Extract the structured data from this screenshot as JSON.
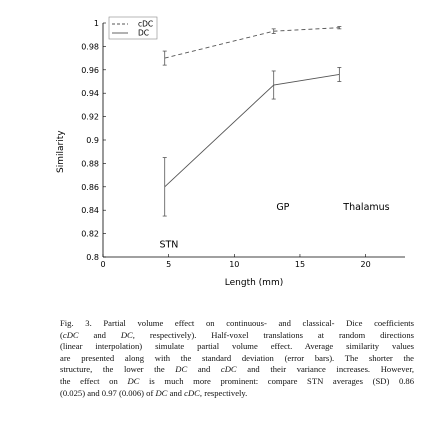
{
  "chart_data": {
    "type": "line",
    "xlabel": "Length (mm)",
    "ylabel": "Similarity",
    "xlim": [
      0,
      23
    ],
    "ylim": [
      0.8,
      1.0
    ],
    "x_ticks": [
      0,
      5,
      10,
      15,
      20
    ],
    "y_ticks": [
      0.8,
      0.82,
      0.84,
      0.86,
      0.88,
      0.9,
      0.92,
      0.94,
      0.96,
      0.98,
      1
    ],
    "y_tick_labels": [
      "0.8",
      "0.82",
      "0.84",
      "0.86",
      "0.88",
      "0.9",
      "0.92",
      "0.94",
      "0.96",
      "0.98",
      "1"
    ],
    "legend_position": "top-left",
    "series": [
      {
        "name": "cDC",
        "style": "dashed",
        "color": "#555555",
        "x": [
          4.7,
          13,
          18
        ],
        "y": [
          0.97,
          0.993,
          0.996
        ],
        "sd": [
          0.006,
          0.002,
          0.001
        ]
      },
      {
        "name": "DC",
        "style": "solid",
        "color": "#555555",
        "x": [
          4.7,
          13,
          18
        ],
        "y": [
          0.86,
          0.947,
          0.956
        ],
        "sd": [
          0.025,
          0.012,
          0.006
        ]
      }
    ],
    "annotations": [
      {
        "text": "STN",
        "x": 4.3,
        "y": 0.808
      },
      {
        "text": "GP",
        "x": 13.2,
        "y": 0.84
      },
      {
        "text": "Thalamus",
        "x": 18.3,
        "y": 0.84
      }
    ]
  },
  "caption": {
    "lines": [
      {
        "parts": [
          {
            "t": "Fig. 3. Partial volume effect on continuous- and classical- Dice coefficients"
          }
        ]
      },
      {
        "parts": [
          {
            "t": "("
          },
          {
            "t": "cDC",
            "i": true
          },
          {
            "t": " and "
          },
          {
            "t": "DC",
            "i": true
          },
          {
            "t": ", respectively). Half-voxel translations at random directions"
          }
        ]
      },
      {
        "parts": [
          {
            "t": "(linear interpolation) simulate partial volume effect. Average similarity values"
          }
        ]
      },
      {
        "parts": [
          {
            "t": "are presented along with the standard deviation (error bars). The shorter the"
          }
        ]
      },
      {
        "parts": [
          {
            "t": "structure, the lower the "
          },
          {
            "t": "DC",
            "i": true
          },
          {
            "t": " and "
          },
          {
            "t": "cDC",
            "i": true
          },
          {
            "t": " and their variance increases. However,"
          }
        ]
      },
      {
        "parts": [
          {
            "t": "the effect on "
          },
          {
            "t": "DC",
            "i": true
          },
          {
            "t": " is much more prominent: compare STN averages (SD) 0.86"
          }
        ]
      },
      {
        "parts": [
          {
            "t": "(0.025) and 0.97 (0.006) of "
          },
          {
            "t": "DC",
            "i": true
          },
          {
            "t": " and "
          },
          {
            "t": "cDC",
            "i": true
          },
          {
            "t": ", respectively."
          }
        ]
      }
    ]
  }
}
